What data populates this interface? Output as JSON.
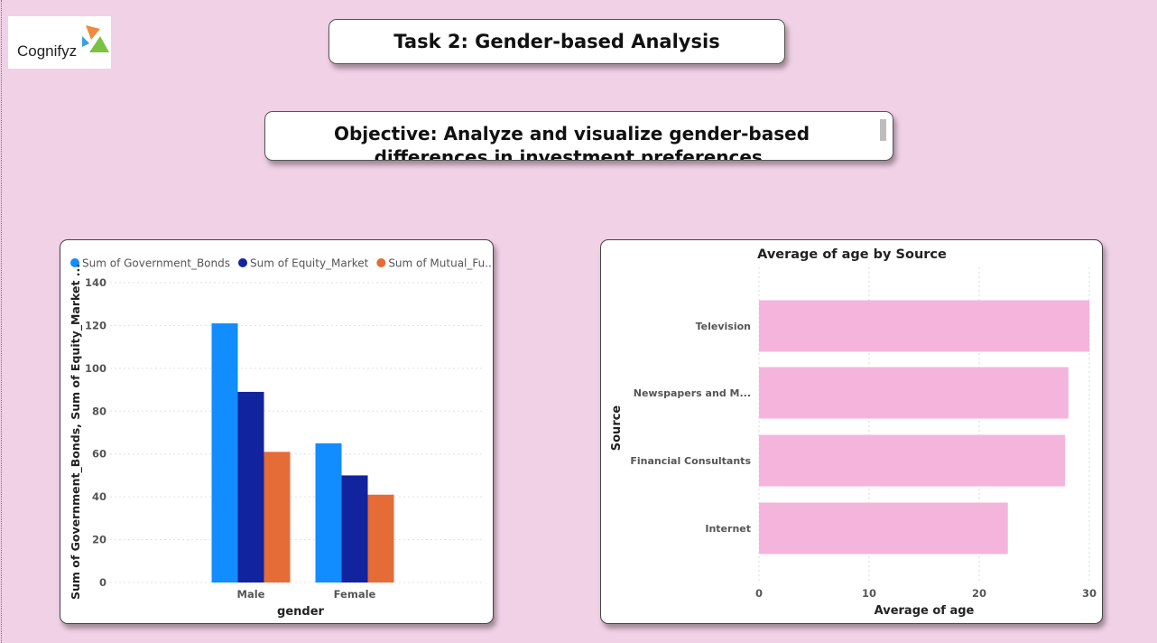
{
  "logo": {
    "text": "Cognifyz"
  },
  "header": {
    "title": "Task 2: Gender-based Analysis"
  },
  "objective": {
    "text": "Objective:  Analyze and visualize gender-based differences in investment preferences."
  },
  "chart_data": [
    {
      "type": "bar",
      "title": "",
      "legend_position": "top-left",
      "categories": [
        "Male",
        "Female"
      ],
      "series": [
        {
          "name": "Sum of Government_Bonds",
          "values": [
            121,
            65
          ],
          "color": "#118dff"
        },
        {
          "name": "Sum of Equity_Market",
          "values": [
            89,
            50
          ],
          "color": "#12239e"
        },
        {
          "name": "Sum of Mutual_Fu...",
          "values": [
            61,
            41
          ],
          "color": "#e66c37"
        }
      ],
      "xlabel": "gender",
      "ylabel": "Sum of Government_Bonds, Sum of Equity_Market ...",
      "ylim": [
        0,
        140
      ],
      "yticks": [
        0,
        20,
        40,
        60,
        80,
        100,
        120,
        140
      ],
      "grid": true
    },
    {
      "type": "bar",
      "orientation": "horizontal",
      "title": "Average of age by Source",
      "categories": [
        "Television",
        "Newspapers and M...",
        "Financial Consultants",
        "Internet"
      ],
      "values": [
        30,
        28.1,
        27.8,
        22.6
      ],
      "color": "#f5b4dc",
      "xlabel": "Average of age",
      "ylabel": "Source",
      "xlim": [
        0,
        30
      ],
      "xticks": [
        0,
        10,
        20,
        30
      ],
      "grid": true
    }
  ]
}
